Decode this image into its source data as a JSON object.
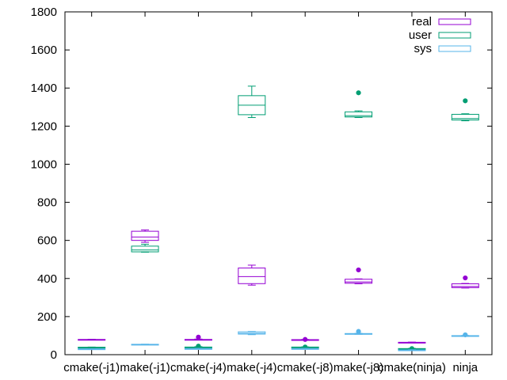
{
  "chart_data": {
    "type": "box",
    "categories": [
      "cmake(-j1)",
      "make(-j1)",
      "cmake(-j4)",
      "make(-j4)",
      "cmake(-j8)",
      "make(-j8)",
      "cmake(ninja)",
      "ninja"
    ],
    "ylim": [
      0,
      1800
    ],
    "yticks": [
      0,
      200,
      400,
      600,
      800,
      1000,
      1200,
      1400,
      1600,
      1800
    ],
    "grid": false,
    "legend_position": "top-right",
    "series": [
      {
        "name": "real",
        "color": "#9400d3",
        "boxes": [
          {
            "min": 77,
            "q1": 78,
            "median": 79,
            "q3": 80,
            "max": 81,
            "outliers": []
          },
          {
            "min": 590,
            "q1": 600,
            "median": 618,
            "q3": 648,
            "max": 655,
            "outliers": []
          },
          {
            "min": 77,
            "q1": 78,
            "median": 79,
            "q3": 80,
            "max": 82,
            "outliers": [
              92
            ]
          },
          {
            "min": 365,
            "q1": 373,
            "median": 410,
            "q3": 455,
            "max": 470,
            "outliers": []
          },
          {
            "min": 76,
            "q1": 77,
            "median": 78,
            "q3": 79,
            "max": 80,
            "outliers": [
              80
            ]
          },
          {
            "min": 372,
            "q1": 375,
            "median": 382,
            "q3": 396,
            "max": 398,
            "outliers": [
              445
            ]
          },
          {
            "min": 62,
            "q1": 63,
            "median": 64,
            "q3": 65,
            "max": 66,
            "outliers": []
          },
          {
            "min": 350,
            "q1": 352,
            "median": 358,
            "q3": 372,
            "max": 374,
            "outliers": [
              403
            ]
          }
        ]
      },
      {
        "name": "user",
        "color": "#009e73",
        "boxes": [
          {
            "min": 36,
            "q1": 37,
            "median": 38,
            "q3": 39,
            "max": 40,
            "outliers": []
          },
          {
            "min": 538,
            "q1": 540,
            "median": 550,
            "q3": 570,
            "max": 580,
            "outliers": []
          },
          {
            "min": 36,
            "q1": 37,
            "median": 38,
            "q3": 40,
            "max": 42,
            "outliers": [
              45
            ]
          },
          {
            "min": 1245,
            "q1": 1260,
            "median": 1310,
            "q3": 1360,
            "max": 1410,
            "outliers": []
          },
          {
            "min": 37,
            "q1": 38,
            "median": 39,
            "q3": 40,
            "max": 41,
            "outliers": [
              40
            ]
          },
          {
            "min": 1245,
            "q1": 1248,
            "median": 1255,
            "q3": 1275,
            "max": 1280,
            "outliers": [
              1375
            ]
          },
          {
            "min": 29,
            "q1": 30,
            "median": 31,
            "q3": 32,
            "max": 33,
            "outliers": [
              32
            ]
          },
          {
            "min": 1228,
            "q1": 1232,
            "median": 1240,
            "q3": 1262,
            "max": 1265,
            "outliers": [
              1333
            ]
          }
        ]
      },
      {
        "name": "sys",
        "color": "#56b4e9",
        "boxes": [
          {
            "min": 29,
            "q1": 29.5,
            "median": 30,
            "q3": 30.5,
            "max": 31,
            "outliers": []
          },
          {
            "min": 53,
            "q1": 53.5,
            "median": 54,
            "q3": 54.5,
            "max": 55,
            "outliers": []
          },
          {
            "min": 29,
            "q1": 30,
            "median": 31,
            "q3": 32,
            "max": 33,
            "outliers": []
          },
          {
            "min": 105,
            "q1": 108,
            "median": 113,
            "q3": 120,
            "max": 122,
            "outliers": []
          },
          {
            "min": 29,
            "q1": 30,
            "median": 31,
            "q3": 32,
            "max": 33,
            "outliers": []
          },
          {
            "min": 107,
            "q1": 108,
            "median": 109,
            "q3": 111,
            "max": 112,
            "outliers": [
              122
            ]
          },
          {
            "min": 22,
            "q1": 23,
            "median": 24,
            "q3": 25,
            "max": 26,
            "outliers": []
          },
          {
            "min": 96,
            "q1": 97,
            "median": 98,
            "q3": 100,
            "max": 101,
            "outliers": [
              104
            ]
          }
        ]
      }
    ]
  }
}
